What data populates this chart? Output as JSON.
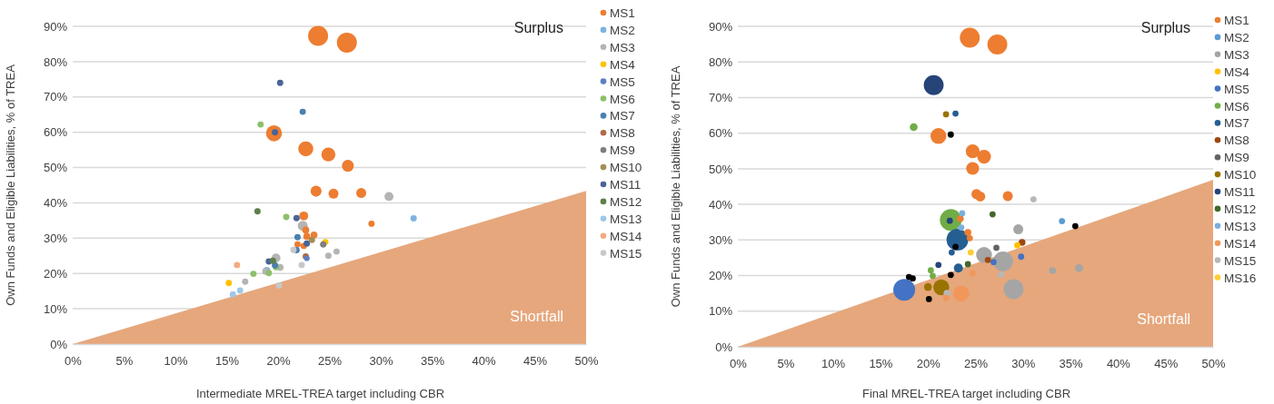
{
  "chart_data": [
    {
      "type": "bubble",
      "xlabel": "Intermediate MREL-TREA target including CBR",
      "ylabel": "Own Funds and Eligible Liabilities, % of TREA",
      "xlim": [
        0,
        50
      ],
      "ylim": [
        0,
        90
      ],
      "xticks": [
        {
          "value": 0,
          "label": "0%"
        },
        {
          "value": 5,
          "label": "5%"
        },
        {
          "value": 10,
          "label": "10%"
        },
        {
          "value": 15,
          "label": "15%"
        },
        {
          "value": 20,
          "label": "20%"
        },
        {
          "value": 25,
          "label": "25%"
        },
        {
          "value": 30,
          "label": "30%"
        },
        {
          "value": 35,
          "label": "35%"
        },
        {
          "value": 40,
          "label": "40%"
        },
        {
          "value": 45,
          "label": "45%"
        },
        {
          "value": 50,
          "label": "50%"
        }
      ],
      "yticks": [
        {
          "value": 0,
          "label": "0%"
        },
        {
          "value": 10,
          "label": "10%"
        },
        {
          "value": 20,
          "label": "20%"
        },
        {
          "value": 30,
          "label": "30%"
        },
        {
          "value": 40,
          "label": "40%"
        },
        {
          "value": 50,
          "label": "50%"
        },
        {
          "value": 60,
          "label": "60%"
        },
        {
          "value": 70,
          "label": "70%"
        },
        {
          "value": 80,
          "label": "80%"
        },
        {
          "value": 90,
          "label": "90%"
        }
      ],
      "grid": "y",
      "legend": "right",
      "annotations": [
        "Surplus",
        "Shortfall"
      ],
      "series": [
        {
          "type": "area",
          "color": "#e6a77c",
          "x": [
            0,
            50
          ],
          "values": [
            0,
            43.4
          ]
        },
        {
          "name": "MS1",
          "color": "#ed7d31",
          "x": [
            23.9,
            26.7,
            19.6,
            22.7,
            24.9,
            26.8,
            23.7,
            25.4,
            28.1,
            29.1,
            22.5,
            22.7,
            23.5,
            22.8,
            21.9,
            22.5
          ],
          "values": [
            87.3,
            85.4,
            59.7,
            55.3,
            53.7,
            50.5,
            43.3,
            42.6,
            42.8,
            34.1,
            36.3,
            32.3,
            30.9,
            30.5,
            28.2,
            27.8
          ],
          "sizes": [
            1,
            1,
            0.64,
            0.56,
            0.49,
            0.36,
            0.3,
            0.25,
            0.25,
            0.1,
            0.2,
            0.12,
            0.12,
            0.12,
            0.1,
            0.1
          ]
        },
        {
          "name": "MS2",
          "color": "#7fb2e0",
          "x": [
            33.2,
            18.9
          ],
          "values": [
            35.6,
            20.9
          ],
          "sizes": [
            0.1,
            0.12
          ]
        },
        {
          "name": "MS3",
          "color": "#b4b4b4",
          "x": [
            30.8,
            22.4,
            19.8,
            20.2,
            25.7,
            24.9,
            16.8,
            18.8
          ],
          "values": [
            41.8,
            33.5,
            24.4,
            21.7,
            26.2,
            25.0,
            17.7,
            20.6
          ],
          "sizes": [
            0.2,
            0.25,
            0.2,
            0.12,
            0.1,
            0.1,
            0.1,
            0.12
          ]
        },
        {
          "name": "MS4",
          "color": "#ffc000",
          "x": [
            15.2,
            24.6
          ],
          "values": [
            17.3,
            28.9
          ],
          "sizes": [
            0.1,
            0.1
          ]
        },
        {
          "name": "MS5",
          "color": "#5b7fc4",
          "x": [
            22.8
          ],
          "values": [
            24.3
          ],
          "sizes": [
            0.08
          ]
        },
        {
          "name": "MS6",
          "color": "#8cc06a",
          "x": [
            18.3,
            20.8,
            17.6,
            19.1,
            19.8
          ],
          "values": [
            62.2,
            36.0,
            19.9,
            20.1,
            21.8
          ],
          "sizes": [
            0.1,
            0.1,
            0.1,
            0.1,
            0.1
          ]
        },
        {
          "name": "MS7",
          "color": "#4a7fb0",
          "x": [
            22.4,
            21.9,
            21.8,
            19.7
          ],
          "values": [
            65.8,
            30.3,
            26.6,
            22.3
          ],
          "sizes": [
            0.1,
            0.1,
            0.1,
            0.1
          ]
        },
        {
          "name": "MS8",
          "color": "#b06a45",
          "x": [
            22.7
          ],
          "values": [
            24.8
          ],
          "sizes": [
            0.1
          ]
        },
        {
          "name": "MS9",
          "color": "#7f7f7f",
          "x": [
            24.4
          ],
          "values": [
            28.2
          ],
          "sizes": [
            0.1
          ]
        },
        {
          "name": "MS10",
          "color": "#a58d55",
          "x": [
            23.3
          ],
          "values": [
            29.5
          ],
          "sizes": [
            0.1
          ]
        },
        {
          "name": "MS11",
          "color": "#4a6496",
          "x": [
            20.2,
            19.7,
            21.8,
            22.8,
            19.1
          ],
          "values": [
            74.0,
            60.0,
            35.7,
            28.5,
            23.4
          ],
          "sizes": [
            0.1,
            0.1,
            0.1,
            0.1,
            0.1
          ]
        },
        {
          "name": "MS12",
          "color": "#5e7f4a",
          "x": [
            18.0,
            19.5
          ],
          "values": [
            37.6,
            23.6
          ],
          "sizes": [
            0.1,
            0.1
          ]
        },
        {
          "name": "MS13",
          "color": "#9ec7ea",
          "x": [
            15.6,
            16.3
          ],
          "values": [
            14.1,
            15.2
          ],
          "sizes": [
            0.1,
            0.1
          ]
        },
        {
          "name": "MS14",
          "color": "#f4ab82",
          "x": [
            16.0
          ],
          "values": [
            22.4
          ],
          "sizes": [
            0.1
          ]
        },
        {
          "name": "MS15",
          "color": "#c8c8c8",
          "x": [
            21.5,
            22.3,
            20.1
          ],
          "values": [
            26.7,
            22.4,
            16.6
          ],
          "sizes": [
            0.1,
            0.1,
            0.1
          ]
        }
      ]
    },
    {
      "type": "bubble",
      "xlabel": "Final MREL-TREA target including CBR",
      "ylabel": "Own Funds and Eligible Liabilities, % of TREA",
      "xlim": [
        0,
        50
      ],
      "ylim": [
        0,
        90
      ],
      "xticks": [
        {
          "value": 0,
          "label": "0%"
        },
        {
          "value": 5,
          "label": "5%"
        },
        {
          "value": 10,
          "label": "10%"
        },
        {
          "value": 15,
          "label": "15%"
        },
        {
          "value": 20,
          "label": "20%"
        },
        {
          "value": 25,
          "label": "25%"
        },
        {
          "value": 30,
          "label": "30%"
        },
        {
          "value": 35,
          "label": "35%"
        },
        {
          "value": 40,
          "label": "40%"
        },
        {
          "value": 45,
          "label": "45%"
        },
        {
          "value": 50,
          "label": "50%"
        }
      ],
      "yticks": [
        {
          "value": 0,
          "label": "0%"
        },
        {
          "value": 10,
          "label": "10%"
        },
        {
          "value": 20,
          "label": "20%"
        },
        {
          "value": 30,
          "label": "30%"
        },
        {
          "value": 40,
          "label": "40%"
        },
        {
          "value": 50,
          "label": "50%"
        },
        {
          "value": 60,
          "label": "60%"
        },
        {
          "value": 70,
          "label": "70%"
        },
        {
          "value": 80,
          "label": "80%"
        },
        {
          "value": 90,
          "label": "90%"
        }
      ],
      "grid": "y",
      "legend": "right",
      "annotations": [
        "Surplus",
        "Shortfall"
      ],
      "series": [
        {
          "type": "area",
          "color": "#e6a77c",
          "x": [
            0,
            50
          ],
          "values": [
            0,
            46.9
          ]
        },
        {
          "name": "MS1",
          "color": "#ed7d31",
          "x": [
            24.4,
            27.3,
            21.1,
            24.7,
            25.9,
            24.7,
            25.1,
            25.5,
            28.4,
            24.2,
            24.4,
            23.4
          ],
          "values": [
            86.8,
            84.9,
            59.2,
            54.9,
            53.4,
            50.1,
            42.9,
            42.2,
            42.3,
            32.1,
            30.5,
            36.0
          ],
          "sizes": [
            0.83,
            0.83,
            0.53,
            0.4,
            0.4,
            0.35,
            0.21,
            0.21,
            0.21,
            0.1,
            0.08,
            0.1
          ]
        },
        {
          "name": "MS2",
          "color": "#5b9bd5",
          "x": [
            34.1
          ],
          "values": [
            35.3
          ],
          "sizes": [
            0.08
          ]
        },
        {
          "name": "MS3",
          "color": "#a5a5a5",
          "x": [
            29.5,
            25.9,
            27.9,
            29.0,
            35.9,
            33.1
          ],
          "values": [
            33.0,
            25.8,
            24.0,
            16.2,
            22.1,
            21.4
          ],
          "sizes": [
            0.21,
            0.53,
            0.83,
            0.83,
            0.13,
            0.1
          ]
        },
        {
          "name": "MS4",
          "color": "#ffc000",
          "x": [
            29.4
          ],
          "values": [
            28.5
          ],
          "sizes": [
            0.08
          ]
        },
        {
          "name": "MS5",
          "color": "#4472c4",
          "x": [
            17.5,
            29.8,
            26.9
          ],
          "values": [
            16.0,
            25.3,
            23.8
          ],
          "sizes": [
            1,
            0.08,
            0.08
          ]
        },
        {
          "name": "MS6",
          "color": "#70ad47",
          "x": [
            18.5,
            22.4,
            20.3,
            20.5
          ],
          "values": [
            61.7,
            35.6,
            21.5,
            19.9
          ],
          "sizes": [
            0.13,
            1,
            0.08,
            0.08
          ]
        },
        {
          "name": "MS7",
          "color": "#255e91",
          "x": [
            22.9,
            23.1,
            23.2,
            22.5
          ],
          "values": [
            65.5,
            30.1,
            22.1,
            26.5
          ],
          "sizes": [
            0.08,
            1,
            0.17,
            0.08
          ]
        },
        {
          "name": "MS8",
          "color": "#9e480e",
          "x": [
            29.9,
            26.3
          ],
          "values": [
            29.3,
            24.4
          ],
          "sizes": [
            0.1,
            0.08
          ]
        },
        {
          "name": "MS9",
          "color": "#636363",
          "x": [
            27.2
          ],
          "values": [
            27.8
          ],
          "sizes": [
            0.08
          ]
        },
        {
          "name": "MS10",
          "color": "#997300",
          "x": [
            21.4,
            20.0,
            21.9
          ],
          "values": [
            16.7,
            16.8,
            65.3
          ],
          "sizes": [
            0.53,
            0.13,
            0.08
          ]
        },
        {
          "name": "MS11",
          "color": "#264478",
          "x": [
            20.6,
            22.3,
            21.1
          ],
          "values": [
            73.5,
            35.4,
            23.0
          ],
          "sizes": [
            0.83,
            0.08,
            0.08
          ]
        },
        {
          "name": "MS12",
          "color": "#43682b",
          "x": [
            26.8,
            24.2
          ],
          "values": [
            37.2,
            23.2
          ],
          "sizes": [
            0.08,
            0.08
          ]
        },
        {
          "name": "MS13",
          "color": "#7cafdd",
          "x": [
            23.6,
            23.5
          ],
          "values": [
            37.5,
            33.5
          ],
          "sizes": [
            0.08,
            0.08
          ]
        },
        {
          "name": "MS14",
          "color": "#f1975a",
          "x": [
            23.5,
            24.7,
            21.9
          ],
          "values": [
            15.0,
            20.7,
            13.7
          ],
          "sizes": [
            0.53,
            0.08,
            0.08
          ]
        },
        {
          "name": "MS15",
          "color": "#b7b7b7",
          "x": [
            31.1,
            27.7,
            22.0
          ],
          "values": [
            41.4,
            20.3,
            15.0
          ],
          "sizes": [
            0.08,
            0.08,
            0.1
          ]
        },
        {
          "name": "MS16",
          "color": "#ffcd33",
          "x": [
            24.5
          ],
          "values": [
            26.5
          ],
          "sizes": [
            0.08
          ]
        },
        {
          "color": "#000000",
          "x": [
            22.4,
            22.9,
            22.4,
            18.0,
            18.4,
            20.1,
            35.5
          ],
          "values": [
            59.6,
            28.1,
            20.2,
            19.6,
            19.2,
            13.4,
            33.9
          ],
          "sizes": [
            0.08,
            0.08,
            0.08,
            0.08,
            0.08,
            0.08,
            0.08
          ]
        }
      ]
    }
  ]
}
